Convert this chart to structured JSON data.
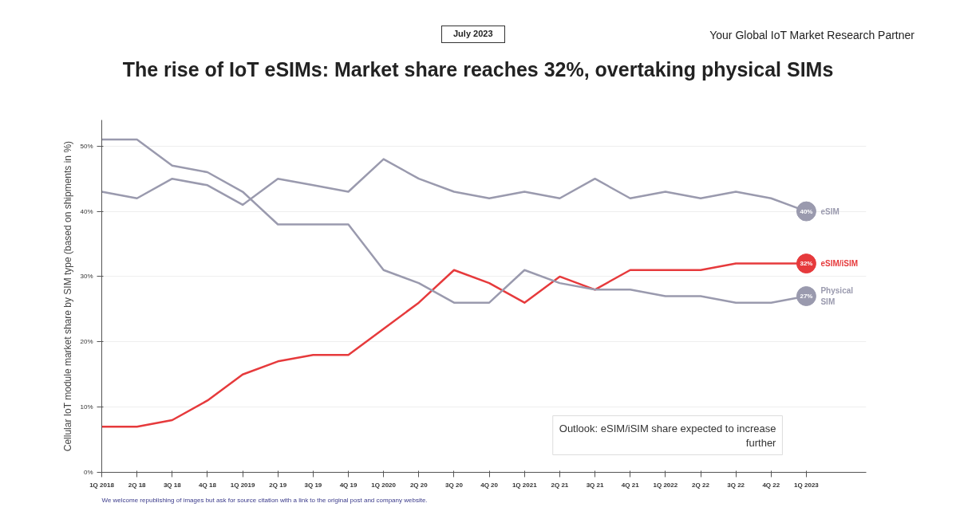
{
  "chart_data": {
    "type": "line",
    "title": "The rise of IoT eSIMs: Market share reaches 32%, overtaking physical SIMs",
    "ylabel": "Cellular IoT module market share by SIM type (based on shipments in %)",
    "annotations": [
      "July 2023",
      "Your Global IoT Market Research Partner",
      "Outlook: eSIM/iSIM share expected to increase further",
      "We welcome republishing of images but ask for source citation with a link to the original post and company website."
    ],
    "categories": [
      "1Q 2018",
      "2Q 18",
      "3Q 18",
      "4Q 18",
      "1Q 2019",
      "2Q 19",
      "3Q 19",
      "4Q 19",
      "1Q 2020",
      "2Q 20",
      "3Q 20",
      "4Q 20",
      "1Q 2021",
      "2Q 21",
      "3Q 21",
      "4Q 21",
      "1Q 2022",
      "2Q 22",
      "3Q 22",
      "4Q 22",
      "1Q 2023"
    ],
    "series": [
      {
        "name": "eSIM",
        "color": "#9a9aae",
        "values": [
          43,
          42,
          45,
          44,
          41,
          45,
          44,
          43,
          48,
          45,
          43,
          42,
          43,
          42,
          45,
          42,
          43,
          42,
          43,
          42,
          40
        ],
        "value_labels": [
          null,
          null,
          null,
          null,
          null,
          null,
          null,
          null,
          null,
          null,
          null,
          null,
          null,
          null,
          null,
          null,
          null,
          null,
          null,
          null,
          "40%"
        ]
      },
      {
        "name": "eSIM/iSIM",
        "color": "#e63a3c",
        "values": [
          7,
          7,
          8,
          11,
          15,
          17,
          18,
          18,
          22,
          26,
          31,
          29,
          26,
          30,
          28,
          31,
          31,
          31,
          32,
          32,
          32
        ],
        "value_labels": [
          null,
          null,
          null,
          null,
          null,
          null,
          null,
          null,
          null,
          null,
          null,
          null,
          null,
          null,
          null,
          null,
          null,
          null,
          null,
          null,
          "32%"
        ]
      },
      {
        "name": "Physical SIM",
        "color": "#9a9aae",
        "values": [
          51,
          51,
          47,
          46,
          43,
          38,
          38,
          38,
          31,
          29,
          26,
          26,
          31,
          29,
          28,
          28,
          27,
          27,
          26,
          26,
          27
        ],
        "value_labels": [
          null,
          null,
          null,
          null,
          null,
          null,
          null,
          null,
          null,
          null,
          null,
          null,
          null,
          null,
          null,
          null,
          null,
          null,
          null,
          null,
          "27%"
        ]
      }
    ],
    "ylim": [
      0,
      54
    ],
    "yticks": [
      {
        "value": 0,
        "label": "0%"
      },
      {
        "value": 10,
        "label": "10%"
      },
      {
        "value": 20,
        "label": "20%"
      },
      {
        "value": 30,
        "label": "30%"
      },
      {
        "value": 40,
        "label": "40%"
      },
      {
        "value": 50,
        "label": "50%"
      }
    ],
    "grid": "y",
    "marker": "none",
    "line_style": "solid"
  }
}
